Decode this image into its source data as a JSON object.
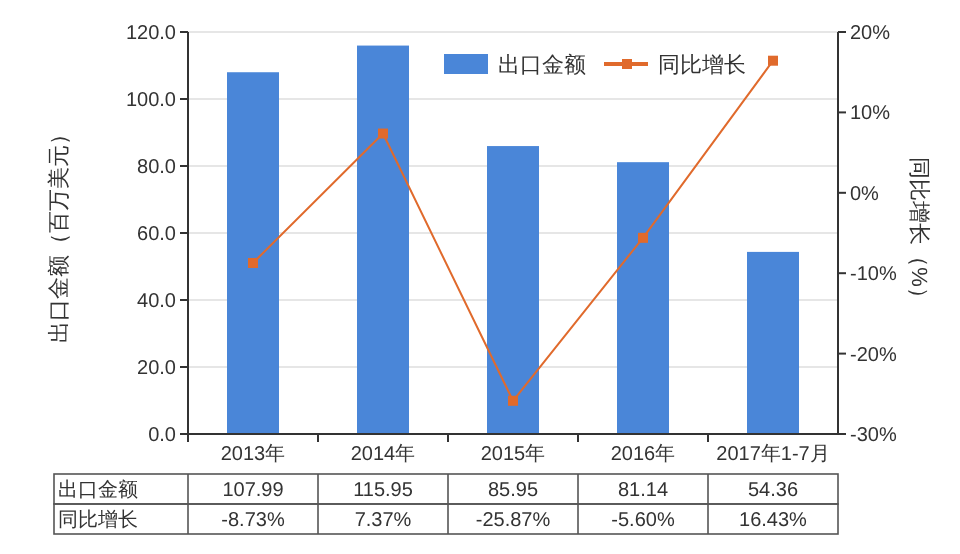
{
  "chart_data": {
    "type": "bar",
    "categories": [
      "2013年",
      "2014年",
      "2015年",
      "2016年",
      "2017年1-7月"
    ],
    "series": [
      {
        "name": "出口金额",
        "color": "#4a86d8",
        "values": [
          107.99,
          115.95,
          85.95,
          81.14,
          54.36
        ],
        "value_labels": [
          "107.99",
          "115.95",
          "85.95",
          "81.14",
          "54.36"
        ]
      },
      {
        "name": "同比增长",
        "type": "line",
        "axis": "y2",
        "color": "#e06a2c",
        "marker": "square",
        "values": [
          -8.73,
          7.37,
          -25.87,
          -5.6,
          16.43
        ],
        "value_labels": [
          "-8.73%",
          "7.37%",
          "-25.87%",
          "-5.60%",
          "16.43%"
        ]
      }
    ],
    "ylabel": "出口金额（百万美元）",
    "y2label": "同比增长（%）",
    "ylim": [
      0,
      120
    ],
    "yticks": [
      {
        "value": 0,
        "label": "0.0"
      },
      {
        "value": 20,
        "label": "20.0"
      },
      {
        "value": 40,
        "label": "40.0"
      },
      {
        "value": 60,
        "label": "60.0"
      },
      {
        "value": 80,
        "label": "80.0"
      },
      {
        "value": 100,
        "label": "100.0"
      },
      {
        "value": 120,
        "label": "120.0"
      }
    ],
    "y2lim": [
      -30,
      20
    ],
    "y2ticks": [
      {
        "value": -30,
        "label": "-30%"
      },
      {
        "value": -20,
        "label": "-20%"
      },
      {
        "value": -10,
        "label": "-10%"
      },
      {
        "value": 0,
        "label": "0%"
      },
      {
        "value": 10,
        "label": "10%"
      },
      {
        "value": 20,
        "label": "20%"
      }
    ],
    "grid": "y",
    "legend": "top right"
  }
}
